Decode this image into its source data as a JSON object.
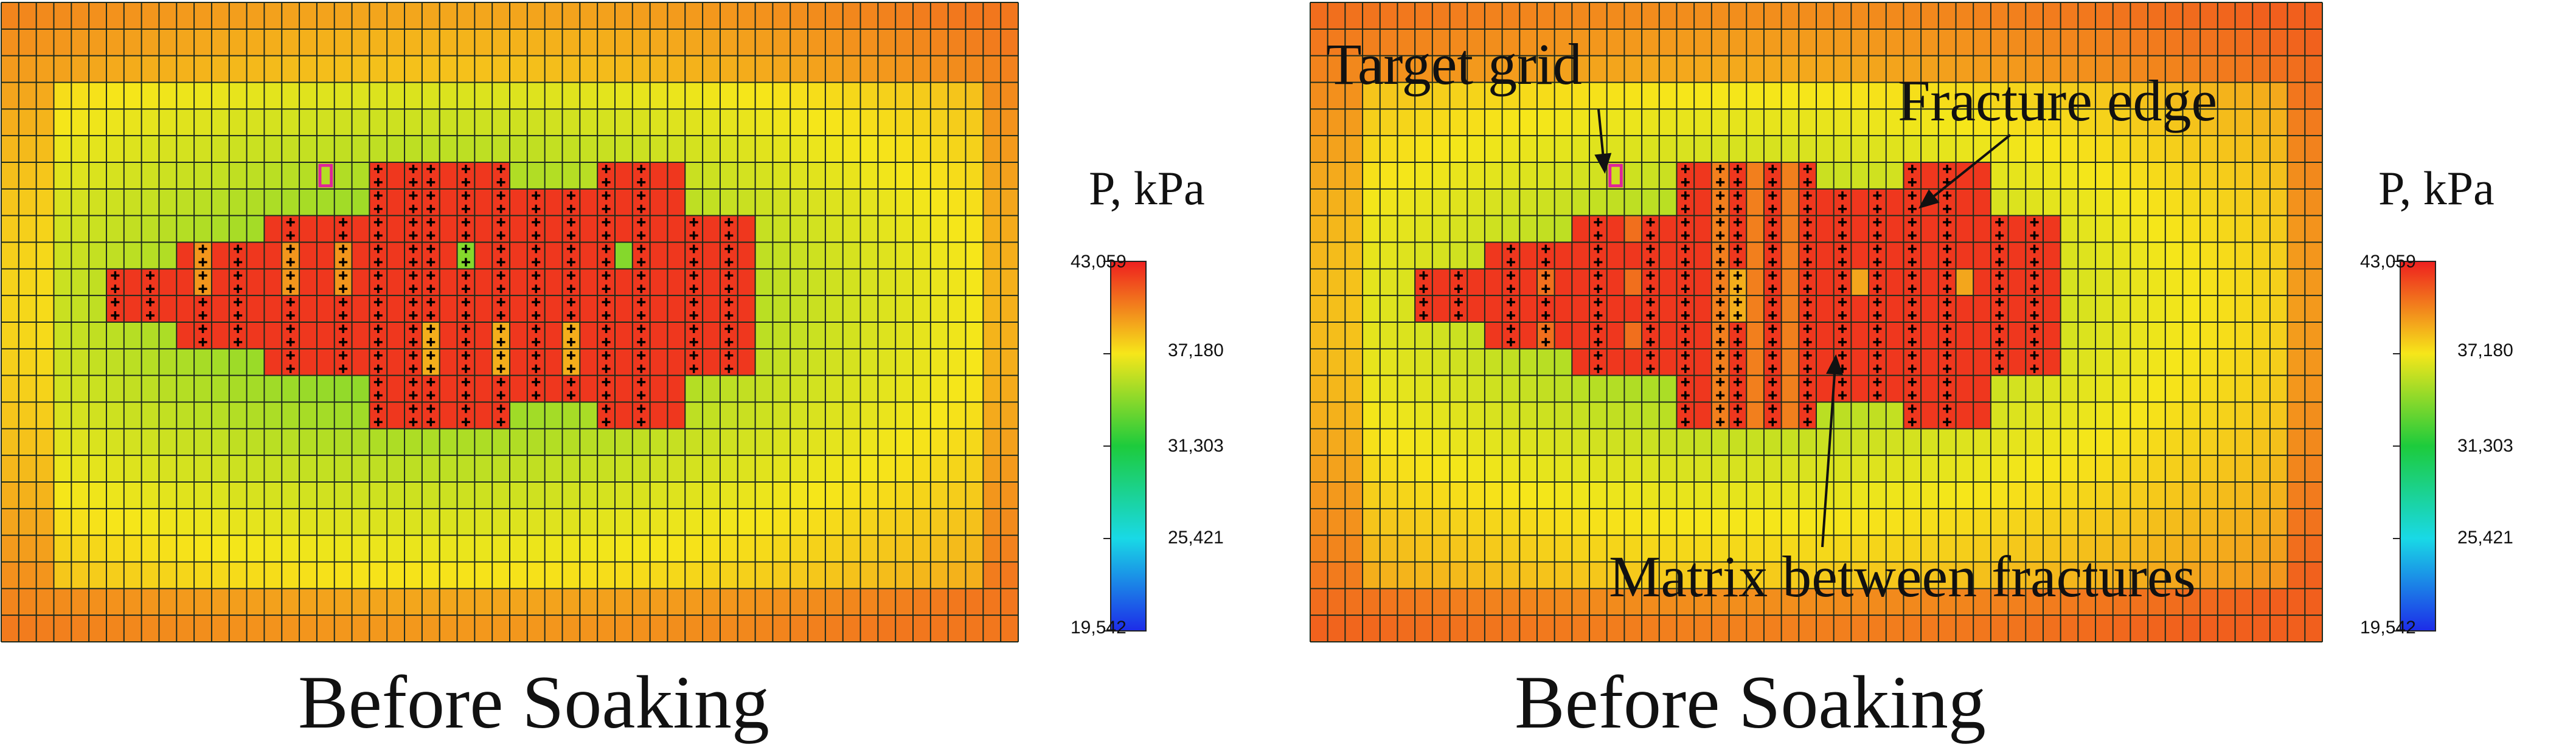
{
  "chart_data": [
    {
      "type": "heatmap",
      "title": "Before Soaking",
      "colorbar": {
        "label": "P, kPa",
        "ticks": [
          "43,059",
          "37,180",
          "31,303",
          "25,421",
          "19,542"
        ],
        "tick_values": [
          43059,
          37180,
          31303,
          25421,
          19542
        ],
        "colors": [
          "#ee1f1f",
          "#f6e61a",
          "#1dcb3c",
          "#19d9e6",
          "#1d2ce8"
        ]
      },
      "grid": {
        "cols": 58,
        "rows": 24
      },
      "annotations": [],
      "target_marker": true
    },
    {
      "type": "heatmap",
      "title": "Before Soaking",
      "colorbar": {
        "label": "P, kPa",
        "ticks": [
          "43,059",
          "37,180",
          "31,303",
          "25,421",
          "19,542"
        ],
        "tick_values": [
          43059,
          37180,
          31303,
          25421,
          19542
        ],
        "colors": [
          "#ee1f1f",
          "#f6e61a",
          "#1dcb3c",
          "#19d9e6",
          "#1d2ce8"
        ]
      },
      "grid": {
        "cols": 58,
        "rows": 24
      },
      "annotations": [
        "Target grid",
        "Fracture edge",
        "Matrix between fractures"
      ],
      "target_marker": true
    }
  ]
}
